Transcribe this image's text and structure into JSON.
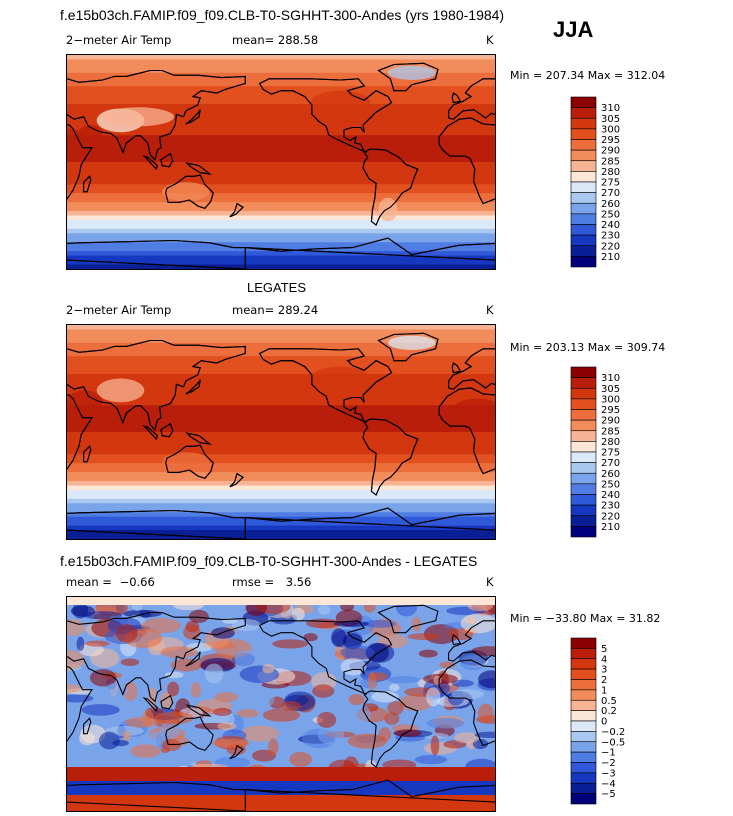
{
  "header": {
    "title": "f.e15b03ch.FAMIP.f09_f09.CLB-T0-SGHHT-300-Andes (yrs 1980-1984)",
    "season": "JJA"
  },
  "panels": [
    {
      "id": "model",
      "section_title": "",
      "left_label": "2−meter Air Temp",
      "mean_label": "mean=",
      "mean_value": "288.58",
      "units": "K",
      "min_label": "Min =",
      "min_value": "207.34",
      "max_label": "Max =",
      "max_value": "312.04"
    },
    {
      "id": "obs",
      "section_title": "LEGATES",
      "left_label": "2−meter Air Temp",
      "mean_label": "mean=",
      "mean_value": "289.24",
      "units": "K",
      "min_label": "Min =",
      "min_value": "203.13",
      "max_label": "Max =",
      "max_value": "309.74"
    },
    {
      "id": "diff",
      "section_title": "f.e15b03ch.FAMIP.f09_f09.CLB-T0-SGHHT-300-Andes - LEGATES",
      "left_label": "mean =",
      "mean_label": "rmse =",
      "left_value": "−0.66",
      "mean_value": "3.56",
      "units": "K",
      "min_label": "Min =",
      "min_value": "−33.80",
      "max_label": "Max =",
      "max_value": "31.82"
    }
  ],
  "chart_data": [
    {
      "type": "heatmap",
      "title": "2-meter Air Temp",
      "units": "K",
      "mean": 288.58,
      "min": 207.34,
      "max": 312.04,
      "colorbar_labels": [
        "310",
        "305",
        "300",
        "295",
        "290",
        "285",
        "280",
        "275",
        "270",
        "260",
        "250",
        "240",
        "230",
        "220",
        "210"
      ],
      "colorbar_colors": [
        "#8b0000",
        "#b81e0a",
        "#d2370f",
        "#e1501e",
        "#eb6e3c",
        "#f28c5a",
        "#f7b494",
        "#fce6d6",
        "#dbe8f7",
        "#a9c8f0",
        "#7aa4ea",
        "#4f7de3",
        "#2f59d9",
        "#1637c0",
        "#0a1e96",
        "#00007a"
      ]
    },
    {
      "type": "heatmap",
      "title": "LEGATES 2-meter Air Temp",
      "units": "K",
      "mean": 289.24,
      "min": 203.13,
      "max": 309.74,
      "colorbar_labels": [
        "310",
        "305",
        "300",
        "295",
        "290",
        "285",
        "280",
        "275",
        "270",
        "260",
        "250",
        "240",
        "230",
        "220",
        "210"
      ],
      "colorbar_colors": [
        "#8b0000",
        "#b81e0a",
        "#d2370f",
        "#e1501e",
        "#eb6e3c",
        "#f28c5a",
        "#f7b494",
        "#fce6d6",
        "#dbe8f7",
        "#a9c8f0",
        "#7aa4ea",
        "#4f7de3",
        "#2f59d9",
        "#1637c0",
        "#0a1e96",
        "#00007a"
      ]
    },
    {
      "type": "heatmap",
      "title": "f.e15b03ch.FAMIP.f09_f09.CLB-T0-SGHHT-300-Andes - LEGATES",
      "units": "K",
      "mean": -0.66,
      "rmse": 3.56,
      "min": -33.8,
      "max": 31.82,
      "colorbar_labels": [
        "5",
        "4",
        "3",
        "2",
        "1",
        "0.5",
        "0.2",
        "0",
        "−0.2",
        "−0.5",
        "−1",
        "−2",
        "−3",
        "−4",
        "−5"
      ],
      "colorbar_colors": [
        "#8b0000",
        "#b81e0a",
        "#d2370f",
        "#e1501e",
        "#eb6e3c",
        "#f28c5a",
        "#f7b494",
        "#fce6d6",
        "#dbe8f7",
        "#a9c8f0",
        "#7aa4ea",
        "#4f7de3",
        "#2f59d9",
        "#1637c0",
        "#0a1e96",
        "#00007a"
      ]
    }
  ]
}
